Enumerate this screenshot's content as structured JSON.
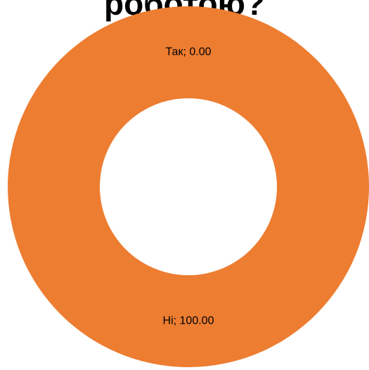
{
  "chart_data": {
    "type": "pie",
    "variant": "donut",
    "title": "роботою?",
    "categories": [
      "Так",
      "Ні"
    ],
    "values": [
      0.0,
      100.0
    ],
    "data_labels": [
      "Так; 0.00",
      "Ні; 100.00"
    ],
    "colors": [
      "#4472c4",
      "#ed7d31"
    ],
    "legend": "none"
  }
}
